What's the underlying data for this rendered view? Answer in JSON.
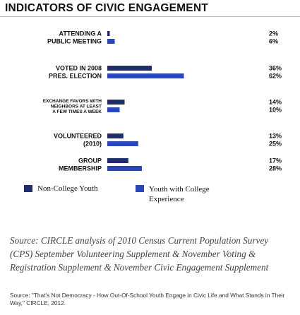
{
  "title": "INDICATORS OF CIVIC ENGAGEMENT",
  "colors": {
    "non_college": "#1f2d6e",
    "college": "#2a46b8"
  },
  "chart_data": {
    "type": "bar",
    "orientation": "horizontal",
    "title": "INDICATORS OF CIVIC ENGAGEMENT",
    "xlim": [
      0,
      100
    ],
    "grid": false,
    "legend_placement": "bottom",
    "categories": [
      {
        "label_lines": [
          "ATTENDING A",
          "PUBLIC MEETING"
        ],
        "small": false
      },
      {
        "label_lines": [
          "VOTED IN 2008",
          "PRES. ELECTION"
        ],
        "small": false
      },
      {
        "label_lines": [
          "EXCHANGE FAVORS WITH",
          "NEIGHBORS AT LEAST",
          "A FEW TIMES A WEEK"
        ],
        "small": true
      },
      {
        "label_lines": [
          "VOLUNTEERED",
          "(2010)"
        ],
        "small": false
      },
      {
        "label_lines": [
          "GROUP",
          "MEMBERSHIP"
        ],
        "small": false
      }
    ],
    "series": [
      {
        "name": "Non-College Youth",
        "values": [
          2,
          36,
          14,
          13,
          17
        ],
        "labels": [
          "2%",
          "36%",
          "14%",
          "13%",
          "17%"
        ]
      },
      {
        "name": "Youth with College Experience",
        "values": [
          6,
          62,
          10,
          25,
          28
        ],
        "labels": [
          "6%",
          "62%",
          "10%",
          "25%",
          "28%"
        ]
      }
    ]
  },
  "legend": {
    "item1": "Non-College Youth",
    "item2_line1": "Youth with College",
    "item2_line2": "Experience"
  },
  "source": {
    "prefix": "Source:",
    "text": " CIRCLE analysis of 2010 Census Current Population Survey (CPS) September Volunteering Supplement & November Voting & Registration Supplement & November Civic Engagement Supplement",
    "small": "Source: \"That's Not Democracy - How Out-Of-School Youth Engage in Civic Life and What Stands in Their Way,\" CIRCLE, 2012."
  }
}
